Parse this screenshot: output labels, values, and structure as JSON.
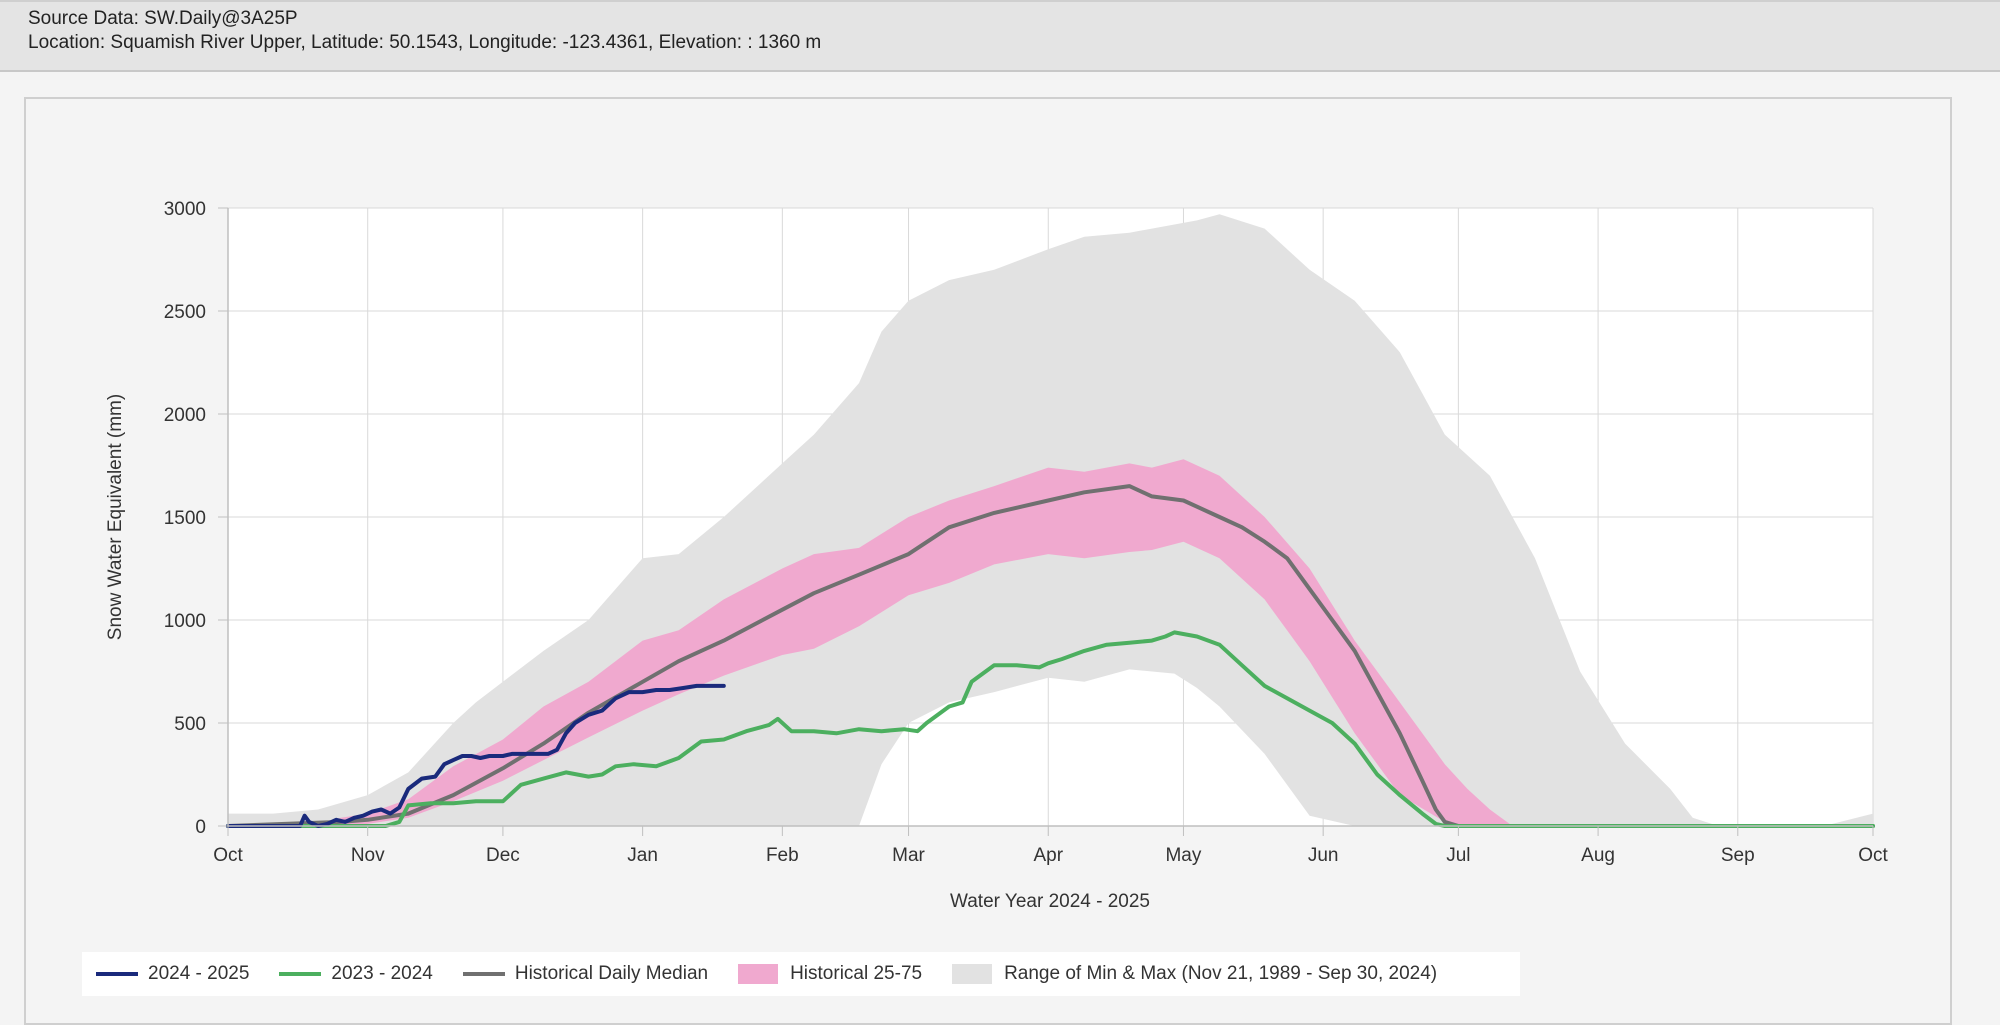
{
  "header": {
    "source": "Source Data: SW.Daily@3A25P",
    "location": "Location: Squamish River Upper, Latitude: 50.1543, Longitude: -123.4361, Elevation: : 1360 m"
  },
  "colors": {
    "series_2024_2025": "#1a2a7c",
    "series_2023_2024": "#4caf5f",
    "median": "#707070",
    "band_25_75": "#f0a9cf",
    "range_min_max": "#e2e2e2"
  },
  "chart_data": {
    "type": "area",
    "xlabel": "Water Year 2024 - 2025",
    "ylabel": "Snow Water Equivalent (mm)",
    "ylim": [
      0,
      3000
    ],
    "y_ticks": [
      "3000",
      "2500",
      "2000",
      "1500",
      "1000",
      "500",
      "0"
    ],
    "x_ticks": [
      "Oct",
      "Nov",
      "Dec",
      "Jan",
      "Feb",
      "Mar",
      "Apr",
      "May",
      "Jun",
      "Jul",
      "Aug",
      "Sep",
      "Oct"
    ],
    "x_tick_days": [
      0,
      31,
      61,
      92,
      123,
      151,
      182,
      212,
      243,
      273,
      304,
      335,
      365
    ],
    "legend_position": "bottom-left",
    "range_min_max": {
      "name": "Range of Min & Max (Nov 21, 1989 - Sep 30, 2024)",
      "day": [
        0,
        10,
        20,
        31,
        40,
        50,
        55,
        61,
        70,
        80,
        92,
        100,
        110,
        123,
        130,
        140,
        145,
        151,
        160,
        170,
        182,
        190,
        200,
        210,
        215,
        220,
        230,
        240,
        250,
        260,
        265,
        270,
        280,
        290,
        300,
        310,
        320,
        325,
        330,
        345,
        355,
        365
      ],
      "max": [
        60,
        60,
        80,
        150,
        260,
        500,
        600,
        700,
        850,
        1000,
        1300,
        1320,
        1500,
        1760,
        1900,
        2150,
        2400,
        2550,
        2650,
        2700,
        2800,
        2860,
        2880,
        2920,
        2940,
        2970,
        2900,
        2700,
        2550,
        2300,
        2100,
        1900,
        1700,
        1300,
        750,
        400,
        180,
        40,
        5,
        5,
        5,
        60
      ],
      "min": [
        0,
        0,
        0,
        0,
        0,
        0,
        0,
        0,
        0,
        0,
        0,
        0,
        0,
        0,
        0,
        0,
        300,
        500,
        600,
        650,
        720,
        700,
        760,
        740,
        670,
        580,
        350,
        50,
        0,
        0,
        0,
        0,
        0,
        0,
        0,
        0,
        0,
        0,
        0,
        0,
        0,
        0
      ]
    },
    "historical_25_75": {
      "name": "Historical 25-75",
      "day": [
        0,
        20,
        25,
        31,
        40,
        50,
        61,
        70,
        80,
        92,
        100,
        110,
        123,
        130,
        140,
        151,
        160,
        170,
        182,
        190,
        200,
        205,
        212,
        220,
        230,
        240,
        250,
        260,
        270,
        275,
        280,
        285,
        365
      ],
      "p75": [
        0,
        0,
        40,
        60,
        130,
        290,
        420,
        580,
        700,
        900,
        950,
        1100,
        1250,
        1320,
        1350,
        1500,
        1580,
        1650,
        1740,
        1720,
        1760,
        1740,
        1780,
        1700,
        1500,
        1250,
        900,
        600,
        300,
        180,
        80,
        0,
        0
      ],
      "p25": [
        0,
        0,
        0,
        10,
        40,
        120,
        220,
        320,
        430,
        560,
        640,
        730,
        830,
        860,
        970,
        1120,
        1180,
        1270,
        1320,
        1300,
        1330,
        1340,
        1380,
        1300,
        1100,
        800,
        450,
        150,
        20,
        0,
        0,
        0,
        0
      ]
    },
    "series": [
      {
        "name": "2024 - 2025",
        "day": [
          0,
          12,
          16,
          17,
          18,
          19,
          20,
          22,
          24,
          26,
          28,
          30,
          32,
          34,
          36,
          38,
          40,
          43,
          46,
          48,
          50,
          52,
          54,
          56,
          58,
          61,
          63,
          65,
          67,
          69,
          71,
          73,
          75,
          77,
          80,
          83,
          86,
          89,
          92,
          95,
          98,
          101,
          104,
          107,
          110
        ],
        "values": [
          0,
          0,
          0,
          50,
          20,
          10,
          0,
          10,
          30,
          20,
          40,
          50,
          70,
          80,
          60,
          90,
          180,
          230,
          240,
          300,
          320,
          340,
          340,
          330,
          340,
          340,
          350,
          350,
          350,
          350,
          350,
          370,
          450,
          500,
          540,
          560,
          620,
          650,
          650,
          660,
          660,
          670,
          680,
          680,
          680
        ]
      },
      {
        "name": "2023 - 2024",
        "day": [
          0,
          20,
          25,
          30,
          35,
          38,
          40,
          45,
          50,
          55,
          61,
          65,
          70,
          75,
          80,
          83,
          86,
          90,
          95,
          100,
          105,
          110,
          115,
          120,
          122,
          125,
          130,
          135,
          140,
          145,
          150,
          153,
          155,
          160,
          163,
          165,
          170,
          175,
          180,
          182,
          185,
          190,
          195,
          200,
          205,
          208,
          210,
          215,
          220,
          225,
          230,
          235,
          240,
          245,
          250,
          255,
          260,
          265,
          268,
          270,
          273,
          365
        ],
        "values": [
          0,
          0,
          0,
          0,
          0,
          20,
          100,
          110,
          110,
          120,
          120,
          200,
          230,
          260,
          240,
          250,
          290,
          300,
          290,
          330,
          410,
          420,
          460,
          490,
          520,
          460,
          460,
          450,
          470,
          460,
          470,
          460,
          500,
          580,
          600,
          700,
          780,
          780,
          770,
          790,
          810,
          850,
          880,
          890,
          900,
          920,
          940,
          920,
          880,
          780,
          680,
          620,
          560,
          500,
          400,
          250,
          150,
          60,
          10,
          0,
          0,
          0
        ]
      },
      {
        "name": "Historical Daily Median",
        "day": [
          0,
          25,
          31,
          40,
          50,
          61,
          70,
          80,
          92,
          100,
          110,
          123,
          130,
          140,
          151,
          160,
          170,
          182,
          190,
          200,
          205,
          212,
          220,
          225,
          230,
          235,
          240,
          245,
          250,
          255,
          260,
          265,
          268,
          270,
          273,
          365
        ],
        "values": [
          0,
          20,
          30,
          60,
          150,
          280,
          400,
          550,
          700,
          800,
          900,
          1050,
          1130,
          1220,
          1320,
          1450,
          1520,
          1580,
          1620,
          1650,
          1600,
          1580,
          1500,
          1450,
          1380,
          1300,
          1150,
          1000,
          850,
          650,
          450,
          220,
          80,
          20,
          0,
          0
        ]
      }
    ]
  },
  "legend": {
    "items": [
      {
        "label": "2024 - 2025"
      },
      {
        "label": "2023 - 2024"
      },
      {
        "label": "Historical Daily Median"
      },
      {
        "label": "Historical 25-75"
      },
      {
        "label": "Range of Min & Max (Nov 21, 1989 - Sep 30, 2024)"
      }
    ]
  }
}
